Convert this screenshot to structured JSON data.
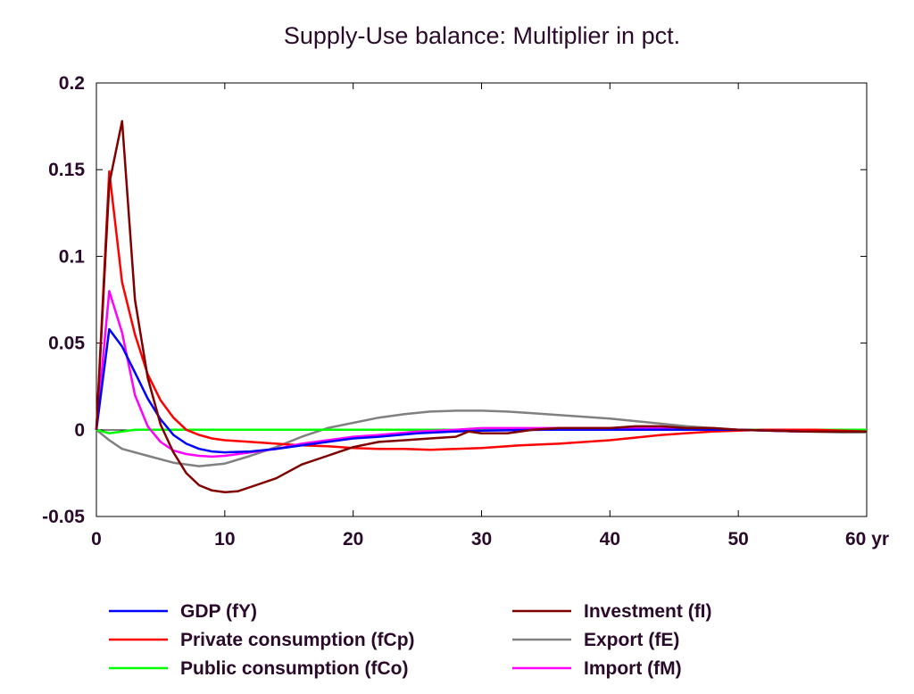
{
  "chart_data": {
    "type": "line",
    "title": "Supply-Use balance: Multiplier in pct.",
    "xlabel": "",
    "ylabel": "",
    "xlim": [
      0,
      60
    ],
    "ylim": [
      -0.05,
      0.2
    ],
    "x_ticks": [
      0,
      10,
      20,
      30,
      40,
      50,
      60
    ],
    "x_tick_labels": [
      "0",
      "10",
      "20",
      "30",
      "40",
      "50",
      "60 yr"
    ],
    "y_ticks": [
      -0.05,
      0,
      0.05,
      0.1,
      0.15,
      0.2
    ],
    "y_tick_labels": [
      "-0.05",
      "0",
      "0.05",
      "0.1",
      "0.15",
      "0.2"
    ],
    "grid": false,
    "legend_position": "bottom",
    "series": [
      {
        "name": "GDP (fY)",
        "color": "#0000ff",
        "points": [
          [
            0,
            0
          ],
          [
            1,
            0.058
          ],
          [
            2,
            0.048
          ],
          [
            3,
            0.033
          ],
          [
            4,
            0.018
          ],
          [
            5,
            0.006
          ],
          [
            6,
            -0.003
          ],
          [
            7,
            -0.008
          ],
          [
            8,
            -0.011
          ],
          [
            9,
            -0.0125
          ],
          [
            10,
            -0.013
          ],
          [
            12,
            -0.0125
          ],
          [
            14,
            -0.011
          ],
          [
            16,
            -0.009
          ],
          [
            18,
            -0.007
          ],
          [
            20,
            -0.005
          ],
          [
            22,
            -0.004
          ],
          [
            25,
            -0.002
          ],
          [
            28,
            -0.001
          ],
          [
            30,
            -0.0005
          ],
          [
            35,
            0
          ],
          [
            40,
            0
          ],
          [
            45,
            0
          ],
          [
            50,
            0
          ],
          [
            55,
            -0.001
          ],
          [
            60,
            -0.001
          ]
        ]
      },
      {
        "name": "Private consumption (fCp)",
        "color": "#ff0000",
        "points": [
          [
            0,
            0
          ],
          [
            1,
            0.149
          ],
          [
            2,
            0.085
          ],
          [
            3,
            0.055
          ],
          [
            4,
            0.032
          ],
          [
            5,
            0.017
          ],
          [
            6,
            0.007
          ],
          [
            7,
            0
          ],
          [
            8,
            -0.003
          ],
          [
            9,
            -0.005
          ],
          [
            10,
            -0.006
          ],
          [
            12,
            -0.007
          ],
          [
            14,
            -0.008
          ],
          [
            16,
            -0.009
          ],
          [
            18,
            -0.0095
          ],
          [
            20,
            -0.0105
          ],
          [
            22,
            -0.011
          ],
          [
            24,
            -0.011
          ],
          [
            26,
            -0.0115
          ],
          [
            28,
            -0.011
          ],
          [
            30,
            -0.0105
          ],
          [
            33,
            -0.009
          ],
          [
            36,
            -0.008
          ],
          [
            40,
            -0.006
          ],
          [
            44,
            -0.003
          ],
          [
            48,
            -0.001
          ],
          [
            52,
            0
          ],
          [
            56,
            0
          ],
          [
            60,
            -0.001
          ]
        ]
      },
      {
        "name": "Public consumption (fCo)",
        "color": "#00ff00",
        "points": [
          [
            0,
            0
          ],
          [
            1,
            -0.002
          ],
          [
            2,
            -0.001
          ],
          [
            3,
            0
          ],
          [
            5,
            0
          ],
          [
            10,
            0
          ],
          [
            20,
            0
          ],
          [
            30,
            0
          ],
          [
            40,
            0
          ],
          [
            50,
            0
          ],
          [
            60,
            0
          ]
        ]
      },
      {
        "name": "Investment (fI)",
        "color": "#800000",
        "points": [
          [
            0,
            0
          ],
          [
            1,
            0.142
          ],
          [
            2,
            0.178
          ],
          [
            3,
            0.075
          ],
          [
            4,
            0.03
          ],
          [
            5,
            0.003
          ],
          [
            6,
            -0.013
          ],
          [
            7,
            -0.025
          ],
          [
            8,
            -0.032
          ],
          [
            9,
            -0.035
          ],
          [
            10,
            -0.036
          ],
          [
            11,
            -0.0355
          ],
          [
            12,
            -0.033
          ],
          [
            14,
            -0.028
          ],
          [
            16,
            -0.02
          ],
          [
            18,
            -0.015
          ],
          [
            20,
            -0.01
          ],
          [
            22,
            -0.007
          ],
          [
            24,
            -0.006
          ],
          [
            26,
            -0.005
          ],
          [
            28,
            -0.004
          ],
          [
            29,
            -0.001
          ],
          [
            30,
            -0.002
          ],
          [
            32,
            -0.002
          ],
          [
            34,
            0
          ],
          [
            36,
            0.001
          ],
          [
            38,
            0.001
          ],
          [
            40,
            0.001
          ],
          [
            42,
            0.002
          ],
          [
            44,
            0.002
          ],
          [
            46,
            0.001
          ],
          [
            48,
            0.001
          ],
          [
            50,
            0
          ],
          [
            55,
            -0.001
          ],
          [
            60,
            -0.001
          ]
        ]
      },
      {
        "name": "Export (fE)",
        "color": "#808080",
        "points": [
          [
            0,
            0
          ],
          [
            1,
            -0.006
          ],
          [
            2,
            -0.011
          ],
          [
            4,
            -0.015
          ],
          [
            6,
            -0.019
          ],
          [
            8,
            -0.021
          ],
          [
            10,
            -0.0195
          ],
          [
            12,
            -0.015
          ],
          [
            14,
            -0.01
          ],
          [
            16,
            -0.004
          ],
          [
            18,
            0.001
          ],
          [
            20,
            0.004
          ],
          [
            22,
            0.007
          ],
          [
            24,
            0.009
          ],
          [
            26,
            0.0105
          ],
          [
            28,
            0.011
          ],
          [
            30,
            0.011
          ],
          [
            32,
            0.0105
          ],
          [
            34,
            0.0095
          ],
          [
            36,
            0.0085
          ],
          [
            38,
            0.0075
          ],
          [
            40,
            0.0065
          ],
          [
            42,
            0.005
          ],
          [
            44,
            0.0035
          ],
          [
            46,
            0.002
          ],
          [
            48,
            0.001
          ],
          [
            50,
            0
          ],
          [
            52,
            -0.0005
          ],
          [
            55,
            -0.001
          ],
          [
            58,
            -0.0015
          ],
          [
            60,
            -0.0015
          ]
        ]
      },
      {
        "name": "Import (fM)",
        "color": "#ff00ff",
        "points": [
          [
            0,
            0
          ],
          [
            1,
            0.08
          ],
          [
            2,
            0.056
          ],
          [
            3,
            0.02
          ],
          [
            4,
            0.002
          ],
          [
            5,
            -0.007
          ],
          [
            6,
            -0.012
          ],
          [
            7,
            -0.014
          ],
          [
            8,
            -0.015
          ],
          [
            9,
            -0.0155
          ],
          [
            10,
            -0.015
          ],
          [
            12,
            -0.013
          ],
          [
            14,
            -0.011
          ],
          [
            16,
            -0.008
          ],
          [
            18,
            -0.006
          ],
          [
            20,
            -0.004
          ],
          [
            22,
            -0.003
          ],
          [
            25,
            -0.001
          ],
          [
            28,
            0
          ],
          [
            30,
            0.001
          ],
          [
            35,
            0.001
          ],
          [
            40,
            0.001
          ],
          [
            45,
            0.001
          ],
          [
            50,
            0
          ],
          [
            55,
            -0.001
          ],
          [
            60,
            -0.001
          ]
        ]
      }
    ]
  }
}
